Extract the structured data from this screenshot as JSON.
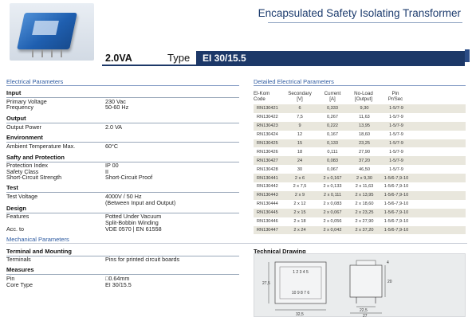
{
  "header": {
    "title": "Encapsulated Safety Isolating Transformer",
    "power": "2.0VA",
    "type_label": "Type",
    "type_value": "EI 30/15.5"
  },
  "electrical": {
    "section_title": "Electrical Parameters",
    "groups": {
      "input": "Input",
      "output": "Output",
      "environment": "Environment",
      "safety": "Safty and Protection",
      "test": "Test",
      "design": "Design"
    },
    "rows": {
      "primary_voltage_k": "Primary Voltage",
      "primary_voltage_v": "230 Vac",
      "frequency_k": "Frequency",
      "frequency_v": "50-60 Hz",
      "output_power_k": "Output Power",
      "output_power_v": "2.0 VA",
      "ambient_k": "Ambient Temperature Max.",
      "ambient_v": "60°C",
      "protection_k": "Protection Index",
      "protection_v": "IP 00",
      "safety_class_k": "Safety Class",
      "safety_class_v": "II",
      "short_circuit_k": "Short-Circuit Strength",
      "short_circuit_v": "Short-Circuit Proof",
      "test_voltage_k": "Test Voltage",
      "test_voltage_v": "4000V / 50 Hz",
      "test_voltage_v2": "(Between Input and Output)",
      "features_k": "Features",
      "features_v": "Potted Under Vacuum",
      "features_v2": "Split-Bobbin Winding",
      "acc_k": "Acc. to",
      "acc_v": "VDE 0570 | EN 61558"
    }
  },
  "mechanical": {
    "section_title": "Mechanical Parameters",
    "terminal_group": "Terminal and Mounting",
    "terminals_k": "Terminals",
    "terminals_v": "Pins for printed circuit boards",
    "measures_group": "Measures",
    "pin_k": "Pin",
    "pin_v": "□0.64mm",
    "core_k": "Core Type",
    "core_v": "EI 30/15.5"
  },
  "detailed": {
    "section_title": "Detailed Electrical Parameters",
    "headers": {
      "code1": "El-Kom",
      "code2": "Code",
      "sec1": "Secondary",
      "sec2": "[V]",
      "cur1": "Current",
      "cur2": "[A]",
      "nl1": "No-Load",
      "nl2": "[Output]",
      "pin1": "Pin",
      "pin2": "Pr/Sec"
    },
    "rows": [
      {
        "code": "RN130421",
        "sec": "6",
        "cur": "0,333",
        "nl": "9,30",
        "pin": "1-5/7-9"
      },
      {
        "code": "RN130422",
        "sec": "7,5",
        "cur": "0,267",
        "nl": "11,63",
        "pin": "1-5/7-9"
      },
      {
        "code": "RN130423",
        "sec": "9",
        "cur": "0,222",
        "nl": "13,95",
        "pin": "1-5/7-9"
      },
      {
        "code": "RN130424",
        "sec": "12",
        "cur": "0,167",
        "nl": "18,60",
        "pin": "1-5/7-9"
      },
      {
        "code": "RN130425",
        "sec": "15",
        "cur": "0,133",
        "nl": "23,25",
        "pin": "1-5/7-9"
      },
      {
        "code": "RN130426",
        "sec": "18",
        "cur": "0,111",
        "nl": "27,90",
        "pin": "1-5/7-9"
      },
      {
        "code": "RN130427",
        "sec": "24",
        "cur": "0,083",
        "nl": "37,20",
        "pin": "1-5/7-9"
      },
      {
        "code": "RN130428",
        "sec": "30",
        "cur": "0,067",
        "nl": "46,50",
        "pin": "1-5/7-9"
      },
      {
        "code": "RN130441",
        "sec": "2 x 6",
        "cur": "2 x 0,167",
        "nl": "2 x 9,30",
        "pin": "1-5/6-7,9-10"
      },
      {
        "code": "RN130442",
        "sec": "2 x 7,5",
        "cur": "2 x 0,133",
        "nl": "2 x 11,63",
        "pin": "1-5/6-7,9-10"
      },
      {
        "code": "RN130443",
        "sec": "2 x 9",
        "cur": "2 x 0,111",
        "nl": "2 x 13,95",
        "pin": "1-5/6-7,9-10"
      },
      {
        "code": "RN130444",
        "sec": "2 x 12",
        "cur": "2 x 0,083",
        "nl": "2 x 18,60",
        "pin": "1-5/6-7,9-10"
      },
      {
        "code": "RN130445",
        "sec": "2 x 15",
        "cur": "2 x 0,067",
        "nl": "2 x 23,25",
        "pin": "1-5/6-7,9-10"
      },
      {
        "code": "RN130446",
        "sec": "2 x 18",
        "cur": "2 x 0,056",
        "nl": "2 x 27,90",
        "pin": "1-5/6-7,9-10"
      },
      {
        "code": "RN130447",
        "sec": "2 x 24",
        "cur": "2 x 0,042",
        "nl": "2 x 37,20",
        "pin": "1-5/6-7,9-10"
      }
    ]
  },
  "drawing": {
    "title": "Technical Drawing",
    "pins_top": "1 2 3 4 5",
    "pins_bottom": "10 9 8 7 6",
    "dim_height": "27,5",
    "dim_width": "32,5",
    "dim_top": "4",
    "dim_side": "20",
    "dim_pin_span": "22,5",
    "dim_depth": "27"
  }
}
